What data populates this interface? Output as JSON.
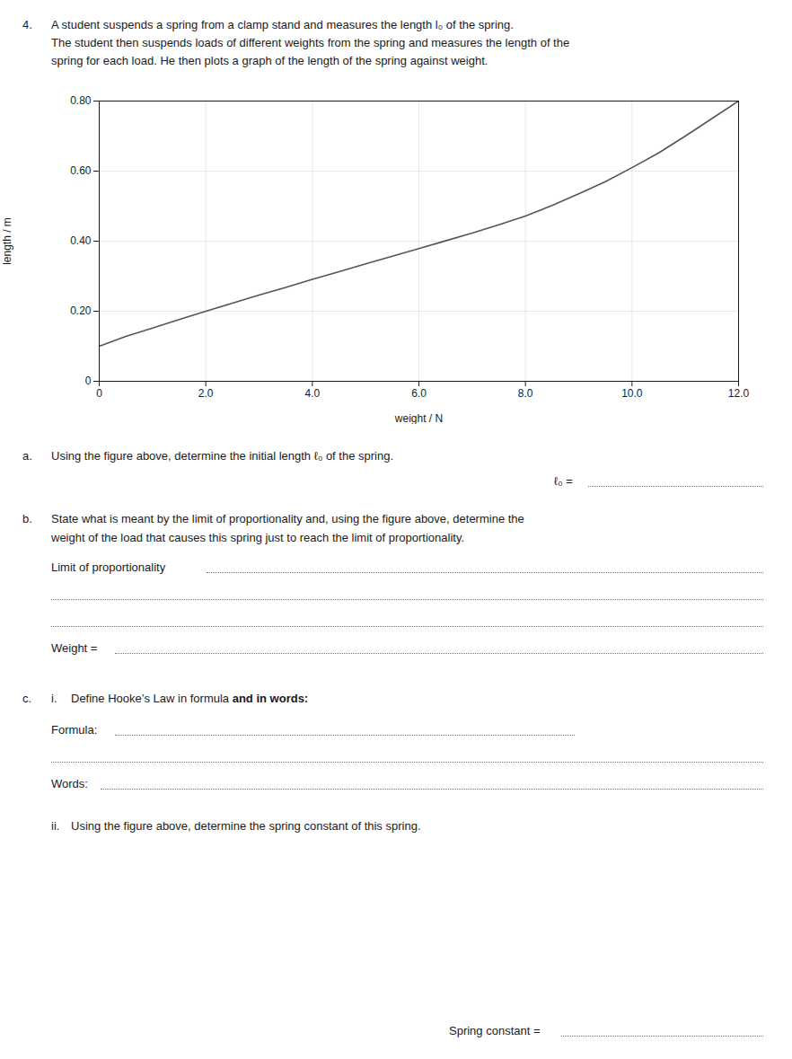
{
  "chart_data": {
    "type": "line",
    "xlabel": "weight / N",
    "ylabel": "length / m",
    "x": [
      0,
      0.5,
      1.0,
      1.5,
      2.0,
      2.5,
      3.0,
      3.5,
      4.0,
      4.5,
      5.0,
      5.5,
      6.0,
      6.5,
      7.0,
      7.5,
      8.0,
      8.5,
      9.0,
      9.5,
      10.0,
      10.5,
      11.0,
      11.5,
      12.0
    ],
    "values": [
      0.1,
      0.128,
      0.152,
      0.176,
      0.2,
      0.223,
      0.246,
      0.268,
      0.291,
      0.313,
      0.335,
      0.357,
      0.379,
      0.401,
      0.423,
      0.447,
      0.472,
      0.502,
      0.535,
      0.57,
      0.61,
      0.652,
      0.7,
      0.75,
      0.8
    ],
    "color": "#555555",
    "xlim": [
      0,
      12.0
    ],
    "ylim": [
      0,
      0.8
    ],
    "xticks": [
      0,
      {
        "value": 2.0,
        "label": "2.0"
      },
      {
        "value": 4.0,
        "label": "4.0"
      },
      {
        "value": 6.0,
        "label": "6.0"
      },
      {
        "value": 8.0,
        "label": "8.0"
      },
      {
        "value": 10.0,
        "label": "10.0"
      },
      {
        "value": 12.0,
        "label": "12.0"
      }
    ],
    "yticks": [
      0,
      {
        "value": 0.2,
        "label": "0.20"
      },
      {
        "value": 0.4,
        "label": "0.40"
      },
      {
        "value": 0.6,
        "label": "0.60"
      },
      {
        "value": 0.8,
        "label": "0.80"
      }
    ],
    "grid": true,
    "annotations": [
      "4.",
      "A student suspends a spring from a clamp stand and measures the length l₀ of the spring.",
      "The student then suspends loads of different weights from the spring and measures the length of the",
      "spring for each load. He then plots a graph of the length of the spring against weight.",
      "a.",
      "Using the figure above, determine the initial length ℓ₀ of the spring.",
      "ℓ₀ =",
      "b.",
      "State what is meant by the limit of proportionality and, using the figure above, determine the",
      "weight of the load that causes this spring just to reach the limit of proportionality.",
      "Limit of proportionality",
      "Weight =",
      "c.",
      "i.",
      "Define Hooke’s Law in formula ",
      "and in words:",
      "Formula:",
      "Words:",
      "ii.",
      "Using the figure above, determine the spring constant of this spring.",
      "Spring constant ="
    ]
  }
}
